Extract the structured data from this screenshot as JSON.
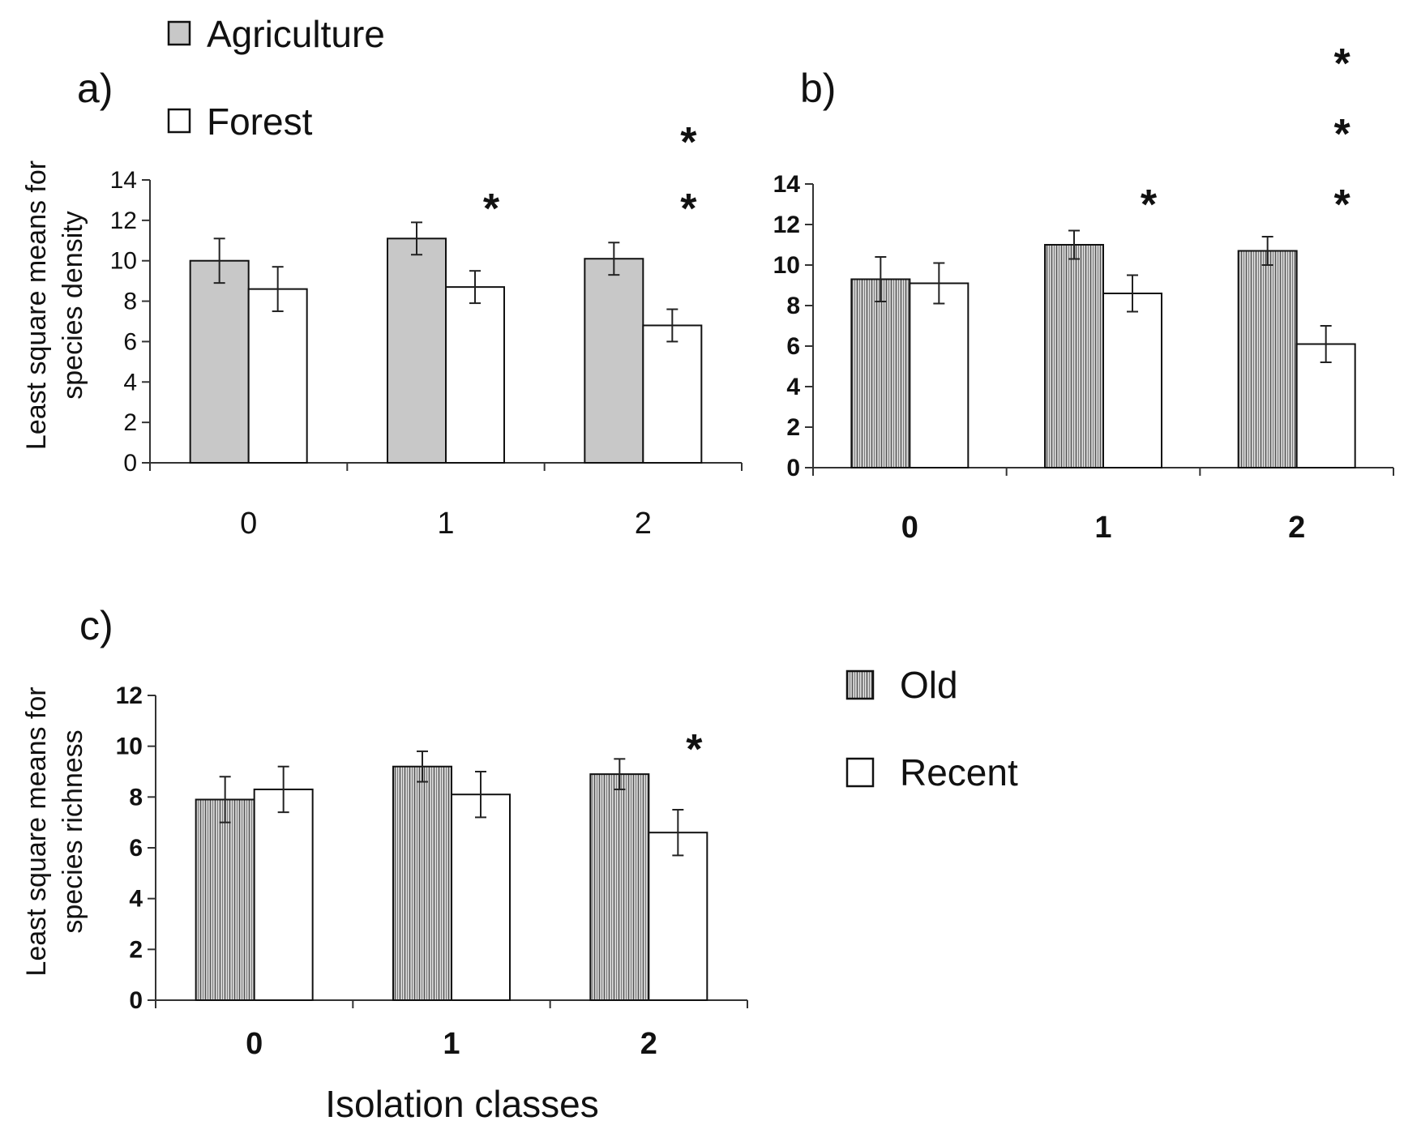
{
  "colors": {
    "agriculture_fill": "#c8c8c8",
    "forest_fill": "#ffffff",
    "old_fill": "hatch-vertical",
    "recent_fill": "#ffffff",
    "stroke": "#111111"
  },
  "legends": {
    "top": {
      "entries": [
        {
          "label": "Agriculture",
          "fill": "gray"
        },
        {
          "label": "Forest",
          "fill": "white"
        }
      ]
    },
    "bottom": {
      "entries": [
        {
          "label": "Old",
          "fill": "hatch"
        },
        {
          "label": "Recent",
          "fill": "white"
        }
      ]
    }
  },
  "shared_xlabel": "Isolation classes",
  "chart_data": [
    {
      "panel": "a)",
      "type": "bar",
      "categories": [
        "0",
        "1",
        "2"
      ],
      "ylabel": [
        "Least square means for",
        "species density"
      ],
      "ylim": [
        0,
        14
      ],
      "yticks": [
        "0",
        "2",
        "4",
        "6",
        "8",
        "10",
        "12",
        "14"
      ],
      "series": [
        {
          "name": "Agriculture",
          "values": [
            10.0,
            11.1,
            10.1
          ],
          "errors": [
            1.1,
            0.8,
            0.8
          ],
          "fill": "gray"
        },
        {
          "name": "Forest",
          "values": [
            8.6,
            8.7,
            6.8
          ],
          "errors": [
            1.1,
            0.8,
            0.8
          ],
          "fill": "white"
        }
      ],
      "significance": [
        "",
        "*",
        "**"
      ]
    },
    {
      "panel": "b)",
      "type": "bar",
      "categories": [
        "0",
        "1",
        "2"
      ],
      "ylabel": [],
      "ylim": [
        0,
        14
      ],
      "yticks": [
        "0",
        "2",
        "4",
        "6",
        "8",
        "10",
        "12",
        "14"
      ],
      "series": [
        {
          "name": "Old",
          "values": [
            9.3,
            11.0,
            10.7
          ],
          "errors": [
            1.1,
            0.7,
            0.7
          ],
          "fill": "hatch"
        },
        {
          "name": "Recent",
          "values": [
            9.1,
            8.6,
            6.1
          ],
          "errors": [
            1.0,
            0.9,
            0.9
          ],
          "fill": "white"
        }
      ],
      "significance": [
        "",
        "*",
        "***"
      ]
    },
    {
      "panel": "c)",
      "type": "bar",
      "categories": [
        "0",
        "1",
        "2"
      ],
      "ylabel": [
        "Least square means for",
        "species richness"
      ],
      "ylim": [
        0,
        12
      ],
      "yticks": [
        "0",
        "2",
        "4",
        "6",
        "8",
        "10",
        "12"
      ],
      "series": [
        {
          "name": "Old",
          "values": [
            7.9,
            9.2,
            8.9
          ],
          "errors": [
            0.9,
            0.6,
            0.6
          ],
          "fill": "hatch"
        },
        {
          "name": "Recent",
          "values": [
            8.3,
            8.1,
            6.6
          ],
          "errors": [
            0.9,
            0.9,
            0.9
          ],
          "fill": "white"
        }
      ],
      "significance": [
        "",
        "",
        "*"
      ]
    }
  ]
}
